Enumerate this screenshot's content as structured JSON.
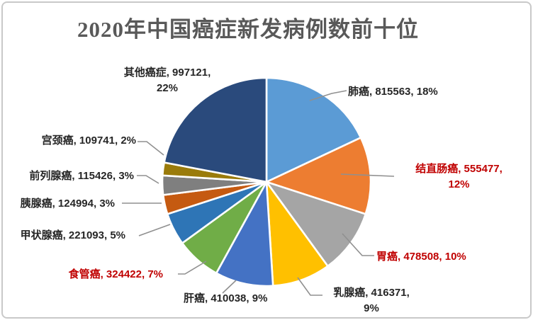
{
  "title": "2020年中国癌症新发病例数前十位",
  "colors": {
    "title_text": "#595959",
    "label_dark": "#262626",
    "label_red": "#C00000",
    "leader_line": "#909090",
    "slice_border": "#FFFFFF",
    "background": "#FFFFFF",
    "frame_border": "#C9C9C9"
  },
  "chart_data": {
    "type": "pie",
    "title": "2020年中国癌症新发病例数前十位",
    "legend": "none",
    "start_angle": "12-o-clock",
    "direction": "clockwise",
    "label_format": "{name}, {value}, {pct}%",
    "series": [
      {
        "key": "lung-cancer",
        "name": "肺癌",
        "value": 815563,
        "pct": 18,
        "color": "#5B9BD5",
        "label_color": "#262626"
      },
      {
        "key": "colorectal-cancer",
        "name": "结直肠癌",
        "value": 555477,
        "pct": 12,
        "color": "#ED7D31",
        "label_color": "#C00000"
      },
      {
        "key": "stomach-cancer",
        "name": "胃癌",
        "value": 478508,
        "pct": 10,
        "color": "#A5A5A5",
        "label_color": "#C00000"
      },
      {
        "key": "breast-cancer",
        "name": "乳腺癌",
        "value": 416371,
        "pct": 9,
        "color": "#FFC000",
        "label_color": "#262626"
      },
      {
        "key": "liver-cancer",
        "name": "肝癌",
        "value": 410038,
        "pct": 9,
        "color": "#4472C4",
        "label_color": "#262626"
      },
      {
        "key": "esophageal-cancer",
        "name": "食管癌",
        "value": 324422,
        "pct": 7,
        "color": "#70AD47",
        "label_color": "#C00000"
      },
      {
        "key": "thyroid-cancer",
        "name": "甲状腺癌",
        "value": 221093,
        "pct": 5,
        "color": "#2E75B6",
        "label_color": "#262626"
      },
      {
        "key": "pancreatic-cancer",
        "name": "胰腺癌",
        "value": 124994,
        "pct": 3,
        "color": "#C55A11",
        "label_color": "#262626"
      },
      {
        "key": "prostate-cancer",
        "name": "前列腺癌",
        "value": 115426,
        "pct": 3,
        "color": "#7F7F7F",
        "label_color": "#262626"
      },
      {
        "key": "cervical-cancer",
        "name": "宫颈癌",
        "value": 109741,
        "pct": 2,
        "color": "#9A7B0B",
        "label_color": "#262626"
      },
      {
        "key": "other-cancers",
        "name": "其他癌症",
        "value": 997121,
        "pct": 22,
        "color": "#2A4A7C",
        "label_color": "#262626"
      }
    ]
  }
}
